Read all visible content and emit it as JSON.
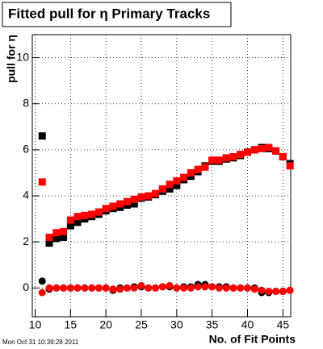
{
  "chart_data": {
    "type": "scatter",
    "title": "Fitted pull for  η Primary Tracks",
    "ylabel": "pull for η",
    "xlabel": "No. of Fit Points",
    "footer": "Mon Oct 31 10:39:28 2011",
    "x": [
      11,
      12,
      13,
      14,
      15,
      16,
      17,
      18,
      19,
      20,
      21,
      22,
      23,
      24,
      25,
      26,
      27,
      28,
      29,
      30,
      31,
      32,
      33,
      34,
      35,
      36,
      37,
      38,
      39,
      40,
      41,
      42,
      43,
      44,
      45,
      46
    ],
    "series": [
      {
        "color": "#000000",
        "marker": "square",
        "values": [
          6.6,
          1.95,
          2.15,
          2.2,
          2.7,
          2.85,
          3.0,
          3.1,
          3.2,
          3.35,
          3.45,
          3.5,
          3.6,
          3.65,
          3.9,
          3.95,
          4.05,
          4.2,
          4.3,
          4.45,
          4.7,
          4.85,
          5.05,
          5.3,
          5.5,
          5.5,
          5.6,
          5.65,
          5.75,
          5.9,
          6.0,
          6.1,
          6.05,
          5.95,
          5.7,
          5.4
        ]
      },
      {
        "color": "#ff0000",
        "marker": "square",
        "values": [
          4.6,
          2.2,
          2.4,
          2.45,
          2.95,
          3.1,
          3.15,
          3.2,
          3.3,
          3.45,
          3.55,
          3.65,
          3.75,
          3.85,
          3.95,
          4.0,
          4.1,
          4.3,
          4.5,
          4.65,
          4.8,
          5.0,
          5.15,
          5.25,
          5.55,
          5.55,
          5.65,
          5.7,
          5.8,
          5.9,
          6.0,
          6.05,
          6.1,
          5.95,
          5.7,
          5.3
        ]
      },
      {
        "color": "#000000",
        "marker": "circle",
        "values": [
          0.3,
          -0.05,
          0.0,
          0.0,
          0.0,
          0.0,
          0.0,
          0.0,
          0.0,
          0.0,
          -0.1,
          0.0,
          0.0,
          0.05,
          0.05,
          0.0,
          0.0,
          0.05,
          0.05,
          0.0,
          0.05,
          0.05,
          0.15,
          0.15,
          0.05,
          0.05,
          0.05,
          0.0,
          0.0,
          0.0,
          0.0,
          -0.2,
          -0.2,
          -0.15,
          -0.15,
          -0.1
        ]
      },
      {
        "color": "#ff0000",
        "marker": "circle",
        "values": [
          -0.2,
          0.0,
          0.0,
          0.0,
          0.0,
          0.0,
          0.0,
          0.0,
          0.0,
          0.0,
          -0.05,
          -0.05,
          0.0,
          0.0,
          0.1,
          0.0,
          0.0,
          0.05,
          0.1,
          0.0,
          0.0,
          0.0,
          0.05,
          0.05,
          0.05,
          0.0,
          0.0,
          0.0,
          0.0,
          0.0,
          -0.05,
          -0.1,
          -0.15,
          -0.15,
          -0.15,
          -0.1
        ]
      }
    ],
    "xlim": [
      9.6,
      46.1
    ],
    "ylim": [
      -1.25,
      11
    ],
    "xticks": [
      10,
      15,
      20,
      25,
      30,
      35,
      40,
      45
    ],
    "yticks": [
      0,
      2,
      4,
      6,
      8,
      10
    ],
    "grid": true
  }
}
